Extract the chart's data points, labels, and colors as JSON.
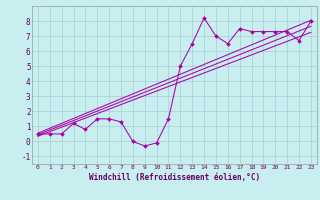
{
  "xlabel": "Windchill (Refroidissement éolien,°C)",
  "xlim": [
    -0.5,
    23.5
  ],
  "ylim": [
    -1.5,
    9.0
  ],
  "yticks": [
    -1,
    0,
    1,
    2,
    3,
    4,
    5,
    6,
    7,
    8
  ],
  "xticks": [
    0,
    1,
    2,
    3,
    4,
    5,
    6,
    7,
    8,
    9,
    10,
    11,
    12,
    13,
    14,
    15,
    16,
    17,
    18,
    19,
    20,
    21,
    22,
    23
  ],
  "bg_color": "#c8eef0",
  "grid_color": "#aad4d8",
  "line_color": "#aa00aa",
  "scatter_line": {
    "x": [
      0,
      1,
      2,
      3,
      4,
      5,
      6,
      7,
      8,
      9,
      10,
      11,
      12,
      13,
      14,
      15,
      16,
      17,
      18,
      19,
      20,
      21,
      22,
      23
    ],
    "y": [
      0.5,
      0.5,
      0.5,
      1.2,
      0.8,
      1.5,
      1.5,
      1.3,
      0.0,
      -0.3,
      -0.1,
      1.5,
      5.0,
      6.5,
      8.2,
      7.0,
      6.5,
      7.5,
      7.3,
      7.3,
      7.3,
      7.3,
      6.7,
      8.0
    ]
  },
  "reg_lines": [
    {
      "x": [
        0,
        23
      ],
      "y": [
        0.55,
        8.05
      ]
    },
    {
      "x": [
        0,
        23
      ],
      "y": [
        0.45,
        7.65
      ]
    },
    {
      "x": [
        0,
        23
      ],
      "y": [
        0.35,
        7.25
      ]
    }
  ]
}
